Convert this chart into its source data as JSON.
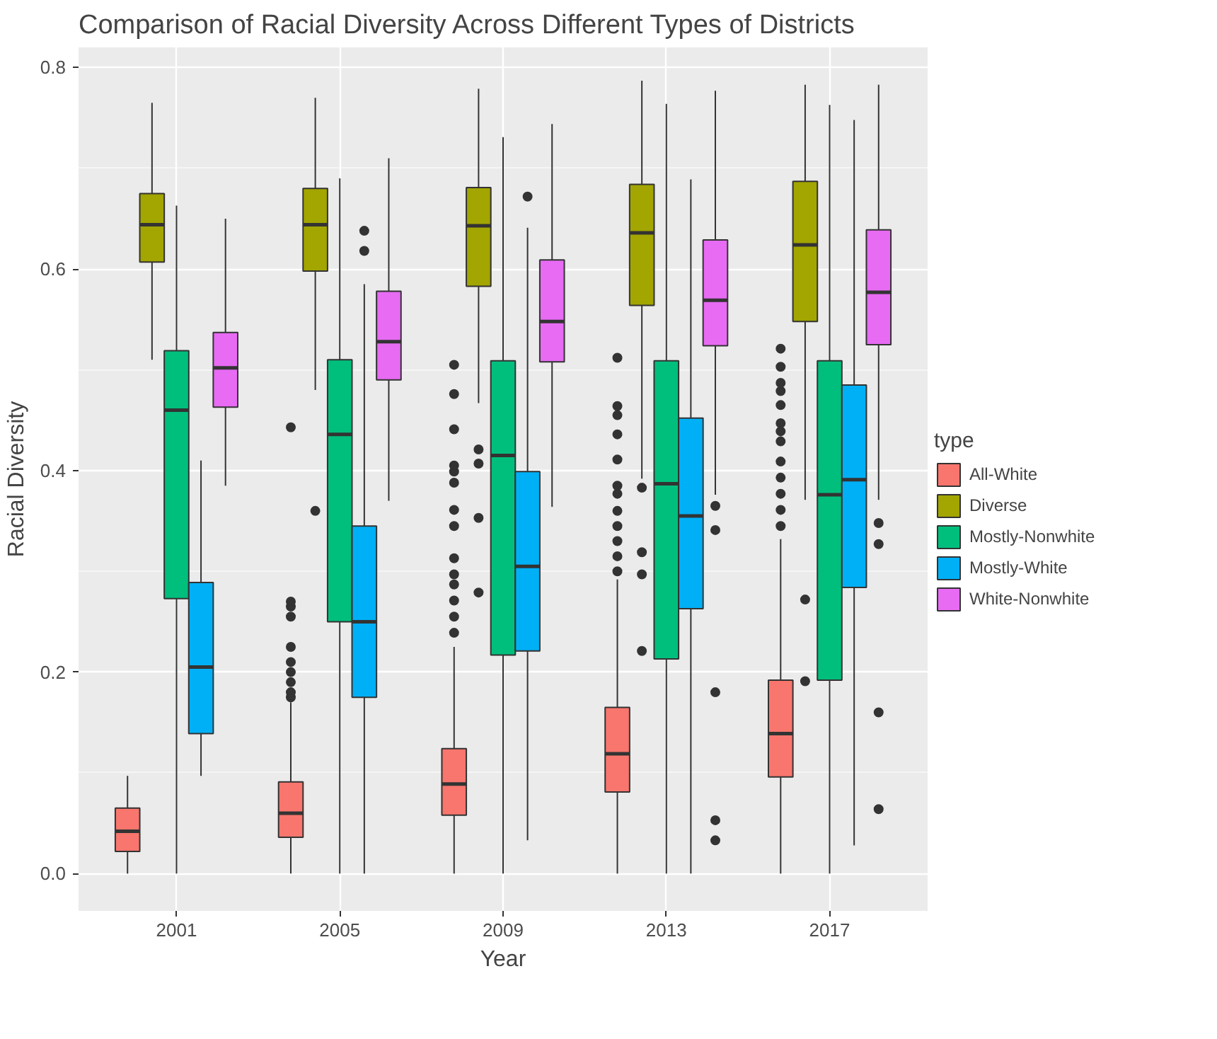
{
  "chart_data": {
    "type": "box",
    "title": "Comparison of Racial Diversity Across Different Types of Districts",
    "xlabel": "Year",
    "ylabel": "Racial Diversity",
    "legend_title": "type",
    "legend": "right",
    "grid": true,
    "categories": [
      "2001",
      "2005",
      "2009",
      "2013",
      "2017"
    ],
    "ylim": [
      -0.037,
      0.82
    ],
    "yticks": [
      {
        "value": 0,
        "label": "0.0"
      },
      {
        "value": 0.2,
        "label": "0.2"
      },
      {
        "value": 0.4,
        "label": "0.4"
      },
      {
        "value": 0.6,
        "label": "0.6"
      },
      {
        "value": 0.8,
        "label": "0.8"
      }
    ],
    "series": [
      {
        "name": "All-White",
        "color": "#f8766d",
        "boxes": [
          {
            "low": 0,
            "q1": 0.022,
            "median": 0.042,
            "q3": 0.065,
            "high": 0.097
          },
          {
            "low": 0,
            "q1": 0.036,
            "median": 0.06,
            "q3": 0.091,
            "high": 0.17,
            "outliers": [
              0.175,
              0.18,
              0.19,
              0.2,
              0.21,
              0.225,
              0.255,
              0.265,
              0.27,
              0.443
            ]
          },
          {
            "low": 0,
            "q1": 0.058,
            "median": 0.089,
            "q3": 0.124,
            "high": 0.225,
            "outliers": [
              0.239,
              0.255,
              0.271,
              0.287,
              0.297,
              0.313,
              0.345,
              0.361,
              0.388,
              0.399,
              0.405,
              0.441,
              0.476,
              0.505
            ]
          },
          {
            "low": 0,
            "q1": 0.081,
            "median": 0.119,
            "q3": 0.165,
            "high": 0.292,
            "outliers": [
              0.3,
              0.315,
              0.33,
              0.345,
              0.36,
              0.377,
              0.385,
              0.411,
              0.436,
              0.455,
              0.464,
              0.512
            ]
          },
          {
            "low": 0,
            "q1": 0.096,
            "median": 0.139,
            "q3": 0.192,
            "high": 0.332,
            "outliers": [
              0.345,
              0.361,
              0.377,
              0.393,
              0.409,
              0.429,
              0.439,
              0.447,
              0.465,
              0.479,
              0.487,
              0.503,
              0.521
            ]
          }
        ]
      },
      {
        "name": "Diverse",
        "color": "#a3a500",
        "boxes": [
          {
            "low": 0.51,
            "q1": 0.607,
            "median": 0.644,
            "q3": 0.675,
            "high": 0.765
          },
          {
            "low": 0.48,
            "q1": 0.598,
            "median": 0.644,
            "q3": 0.68,
            "high": 0.77,
            "outliers": [
              0.36
            ]
          },
          {
            "low": 0.467,
            "q1": 0.583,
            "median": 0.643,
            "q3": 0.681,
            "high": 0.779,
            "outliers": [
              0.279,
              0.353,
              0.407,
              0.421
            ]
          },
          {
            "low": 0.392,
            "q1": 0.564,
            "median": 0.636,
            "q3": 0.684,
            "high": 0.787,
            "outliers": [
              0.221,
              0.297,
              0.319,
              0.383
            ]
          },
          {
            "low": 0.371,
            "q1": 0.548,
            "median": 0.624,
            "q3": 0.687,
            "high": 0.783,
            "outliers": [
              0.191,
              0.272
            ]
          }
        ]
      },
      {
        "name": "Mostly-Nonwhite",
        "color": "#00bf7d",
        "boxes": [
          {
            "low": 0,
            "q1": 0.273,
            "median": 0.46,
            "q3": 0.519,
            "high": 0.663
          },
          {
            "low": 0,
            "q1": 0.25,
            "median": 0.436,
            "q3": 0.51,
            "high": 0.69
          },
          {
            "low": 0,
            "q1": 0.217,
            "median": 0.415,
            "q3": 0.509,
            "high": 0.731
          },
          {
            "low": 0,
            "q1": 0.213,
            "median": 0.387,
            "q3": 0.509,
            "high": 0.764
          },
          {
            "low": 0,
            "q1": 0.192,
            "median": 0.376,
            "q3": 0.509,
            "high": 0.763
          }
        ]
      },
      {
        "name": "Mostly-White",
        "color": "#00b0f6",
        "boxes": [
          {
            "low": 0.097,
            "q1": 0.139,
            "median": 0.205,
            "q3": 0.289,
            "high": 0.41
          },
          {
            "low": 0,
            "q1": 0.175,
            "median": 0.25,
            "q3": 0.345,
            "high": 0.585,
            "outliers": [
              0.618,
              0.638
            ]
          },
          {
            "low": 0.033,
            "q1": 0.221,
            "median": 0.305,
            "q3": 0.399,
            "high": 0.641,
            "outliers": [
              0.672
            ]
          },
          {
            "low": 0,
            "q1": 0.263,
            "median": 0.355,
            "q3": 0.452,
            "high": 0.689
          },
          {
            "low": 0.028,
            "q1": 0.284,
            "median": 0.391,
            "q3": 0.485,
            "high": 0.748
          }
        ]
      },
      {
        "name": "White-Nonwhite",
        "color": "#e76bf3",
        "boxes": [
          {
            "low": 0.385,
            "q1": 0.463,
            "median": 0.502,
            "q3": 0.537,
            "high": 0.65
          },
          {
            "low": 0.37,
            "q1": 0.49,
            "median": 0.528,
            "q3": 0.578,
            "high": 0.71
          },
          {
            "low": 0.364,
            "q1": 0.508,
            "median": 0.548,
            "q3": 0.609,
            "high": 0.744
          },
          {
            "low": 0.376,
            "q1": 0.524,
            "median": 0.569,
            "q3": 0.629,
            "high": 0.777,
            "outliers": [
              0.033,
              0.053,
              0.18,
              0.341,
              0.365
            ]
          },
          {
            "low": 0.371,
            "q1": 0.525,
            "median": 0.577,
            "q3": 0.639,
            "high": 0.783,
            "outliers": [
              0.064,
              0.16,
              0.327,
              0.348
            ]
          }
        ]
      }
    ]
  }
}
